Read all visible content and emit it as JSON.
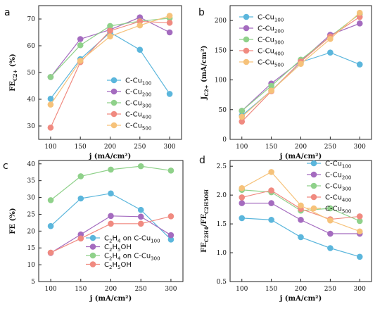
{
  "colors": {
    "Cu100": "#5bb6dc",
    "Cu200": "#a46bbf",
    "Cu300": "#8fd18a",
    "Cu400": "#f08a80",
    "Cu500": "#f6c27a"
  },
  "chart_data": [
    {
      "panel": "a",
      "type": "line",
      "xlabel": "j (mA/cm²)",
      "ylabel": {
        "main": "FE",
        "sub": "C2+",
        "tail": " (%)"
      },
      "x": [
        100,
        150,
        200,
        250,
        300
      ],
      "xlim": [
        80,
        320
      ],
      "ylim": [
        25,
        75
      ],
      "yticks": [
        30,
        40,
        50,
        60,
        70
      ],
      "legend_position": "middle-right",
      "series": [
        {
          "name": {
            "main": "C-Cu",
            "sub": "100"
          },
          "color": "Cu100",
          "values": [
            40.2,
            55.0,
            65.0,
            58.5,
            42.0
          ]
        },
        {
          "name": {
            "main": "C-Cu",
            "sub": "200"
          },
          "color": "Cu200",
          "values": [
            48.3,
            62.5,
            66.0,
            70.6,
            65.0
          ]
        },
        {
          "name": {
            "main": "C-Cu",
            "sub": "300"
          },
          "color": "Cu300",
          "values": [
            48.3,
            60.2,
            67.4,
            69.2,
            70.3
          ]
        },
        {
          "name": {
            "main": "C-Cu",
            "sub": "400"
          },
          "color": "Cu400",
          "values": [
            29.4,
            53.9,
            65.6,
            69.1,
            68.6
          ]
        },
        {
          "name": {
            "main": "C-Cu",
            "sub": "500"
          },
          "color": "Cu500",
          "values": [
            38.0,
            54.4,
            63.5,
            67.6,
            71.2
          ]
        }
      ]
    },
    {
      "panel": "b",
      "type": "line",
      "xlabel": "j (mA/cm²)",
      "ylabel": {
        "main": "J",
        "sub": "C2+",
        "tail": " (mA/cm²)"
      },
      "x": [
        100,
        150,
        200,
        250,
        300
      ],
      "xlim": [
        80,
        320
      ],
      "ylim": [
        0,
        225
      ],
      "yticks": [
        0,
        50,
        100,
        150,
        200
      ],
      "legend_position": "top-left",
      "series": [
        {
          "name": {
            "main": "C-Cu",
            "sub": "100"
          },
          "color": "Cu100",
          "values": [
            40,
            82,
            130,
            146,
            126
          ]
        },
        {
          "name": {
            "main": "C-Cu",
            "sub": "200"
          },
          "color": "Cu200",
          "values": [
            48,
            94,
            132,
            176,
            195
          ]
        },
        {
          "name": {
            "main": "C-Cu",
            "sub": "300"
          },
          "color": "Cu300",
          "values": [
            48,
            90,
            134,
            173,
            211
          ]
        },
        {
          "name": {
            "main": "C-Cu",
            "sub": "400"
          },
          "color": "Cu400",
          "values": [
            30,
            81,
            131,
            173,
            206
          ]
        },
        {
          "name": {
            "main": "C-Cu",
            "sub": "500"
          },
          "color": "Cu500",
          "values": [
            38,
            82,
            127,
            169,
            213
          ]
        }
      ]
    },
    {
      "panel": "c",
      "type": "line",
      "xlabel": "j (mA/cm²)",
      "ylabel": {
        "main": "FE",
        "sub": "",
        "tail": " (%)"
      },
      "x": [
        100,
        150,
        200,
        250,
        300
      ],
      "xlim": [
        80,
        320
      ],
      "ylim": [
        5,
        41
      ],
      "yticks": [
        5,
        10,
        15,
        20,
        25,
        30,
        35,
        40
      ],
      "legend_position": "bottom-center",
      "series": [
        {
          "name": {
            "main": "C",
            "sub": "2",
            "mid": "H",
            "sub2": "4",
            "tail": "  on  C-Cu",
            "sub3": "100"
          },
          "color": "Cu100",
          "values": [
            21.5,
            29.7,
            31.2,
            26.3,
            17.5
          ]
        },
        {
          "name": {
            "main": "C",
            "sub": "2",
            "mid": "H",
            "sub2": "5",
            "tail": "OH",
            "sub3": ""
          },
          "color": "Cu200",
          "values": [
            13.5,
            19.0,
            24.5,
            24.3,
            18.8
          ]
        },
        {
          "name": {
            "main": "C",
            "sub": "2",
            "mid": "H",
            "sub2": "4",
            "tail": "  on  C-Cu",
            "sub3": "300"
          },
          "color": "Cu300",
          "values": [
            29.2,
            36.3,
            38.3,
            39.3,
            38.0
          ]
        },
        {
          "name": {
            "main": "C",
            "sub": "2",
            "mid": "H",
            "sub2": "5",
            "tail": "OH",
            "sub3": ""
          },
          "color": "Cu400",
          "values": [
            13.6,
            17.8,
            22.2,
            22.2,
            24.4
          ]
        }
      ]
    },
    {
      "panel": "d",
      "type": "line",
      "xlabel": "j (mA/cm²)",
      "ylabel": {
        "main": "FE",
        "sub": "C2H4",
        "tail": "/FE",
        "sub2": "C2H5OH"
      },
      "x": [
        100,
        150,
        200,
        250,
        300
      ],
      "xlim": [
        80,
        320
      ],
      "ylim": [
        0.5,
        2.6
      ],
      "yticks": [
        0.5,
        1.0,
        1.5,
        2.0,
        2.5
      ],
      "legend_position": "top-right",
      "series": [
        {
          "name": {
            "main": "C-Cu",
            "sub": "100"
          },
          "color": "Cu100",
          "values": [
            1.6,
            1.57,
            1.27,
            1.08,
            0.93
          ]
        },
        {
          "name": {
            "main": "C-Cu",
            "sub": "200"
          },
          "color": "Cu200",
          "values": [
            1.86,
            1.86,
            1.57,
            1.33,
            1.33
          ]
        },
        {
          "name": {
            "main": "C-Cu",
            "sub": "300"
          },
          "color": "Cu300",
          "values": [
            2.09,
            2.05,
            1.73,
            1.77,
            1.55
          ]
        },
        {
          "name": {
            "main": "C-Cu",
            "sub": "400"
          },
          "color": "Cu400",
          "values": [
            1.96,
            2.08,
            1.76,
            1.58,
            1.63
          ]
        },
        {
          "name": {
            "main": "C-Cu",
            "sub": "500"
          },
          "color": "Cu500",
          "values": [
            2.12,
            2.4,
            1.82,
            1.56,
            1.37
          ]
        }
      ]
    }
  ]
}
